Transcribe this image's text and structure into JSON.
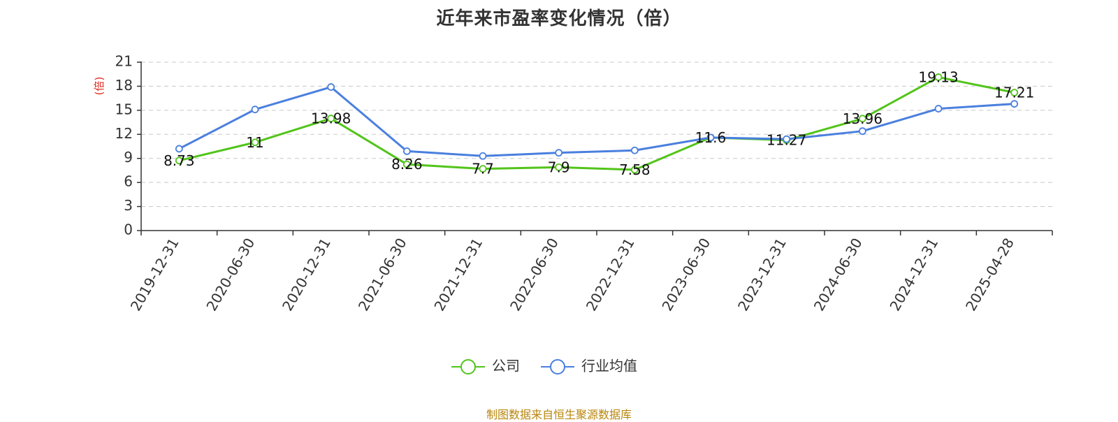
{
  "title": "近年来市盈率变化情况（倍）",
  "source_note": "制图数据来自恒生聚源数据库",
  "chart_data": {
    "type": "line",
    "title": "近年来市盈率变化情况（倍）",
    "ylabel": "(倍)",
    "xlabel": "",
    "ylim": [
      0,
      21
    ],
    "yticks": [
      0,
      3,
      6,
      9,
      12,
      15,
      18,
      21
    ],
    "grid": true,
    "legend_position": "bottom",
    "categories": [
      "2019-12-31",
      "2020-06-30",
      "2020-12-31",
      "2021-06-30",
      "2021-12-31",
      "2022-06-30",
      "2022-12-31",
      "2023-06-30",
      "2023-12-31",
      "2024-06-30",
      "2024-12-31",
      "2025-04-28"
    ],
    "series": [
      {
        "name": "公司",
        "color": "#52c41a",
        "values": [
          8.73,
          11,
          13.98,
          8.26,
          7.7,
          7.9,
          7.58,
          11.6,
          11.27,
          13.96,
          19.13,
          17.21
        ],
        "labels": [
          "8.73",
          "11",
          "13.98",
          "8.26",
          "7.7",
          "7.9",
          "7.58",
          "11.6",
          "11.27",
          "13.96",
          "19.13",
          "17.21"
        ]
      },
      {
        "name": "行业均值",
        "color": "#4a7fde",
        "values": [
          10.2,
          15.1,
          17.9,
          9.9,
          9.3,
          9.7,
          10.0,
          11.6,
          11.4,
          12.4,
          15.2,
          15.8
        ]
      }
    ]
  }
}
